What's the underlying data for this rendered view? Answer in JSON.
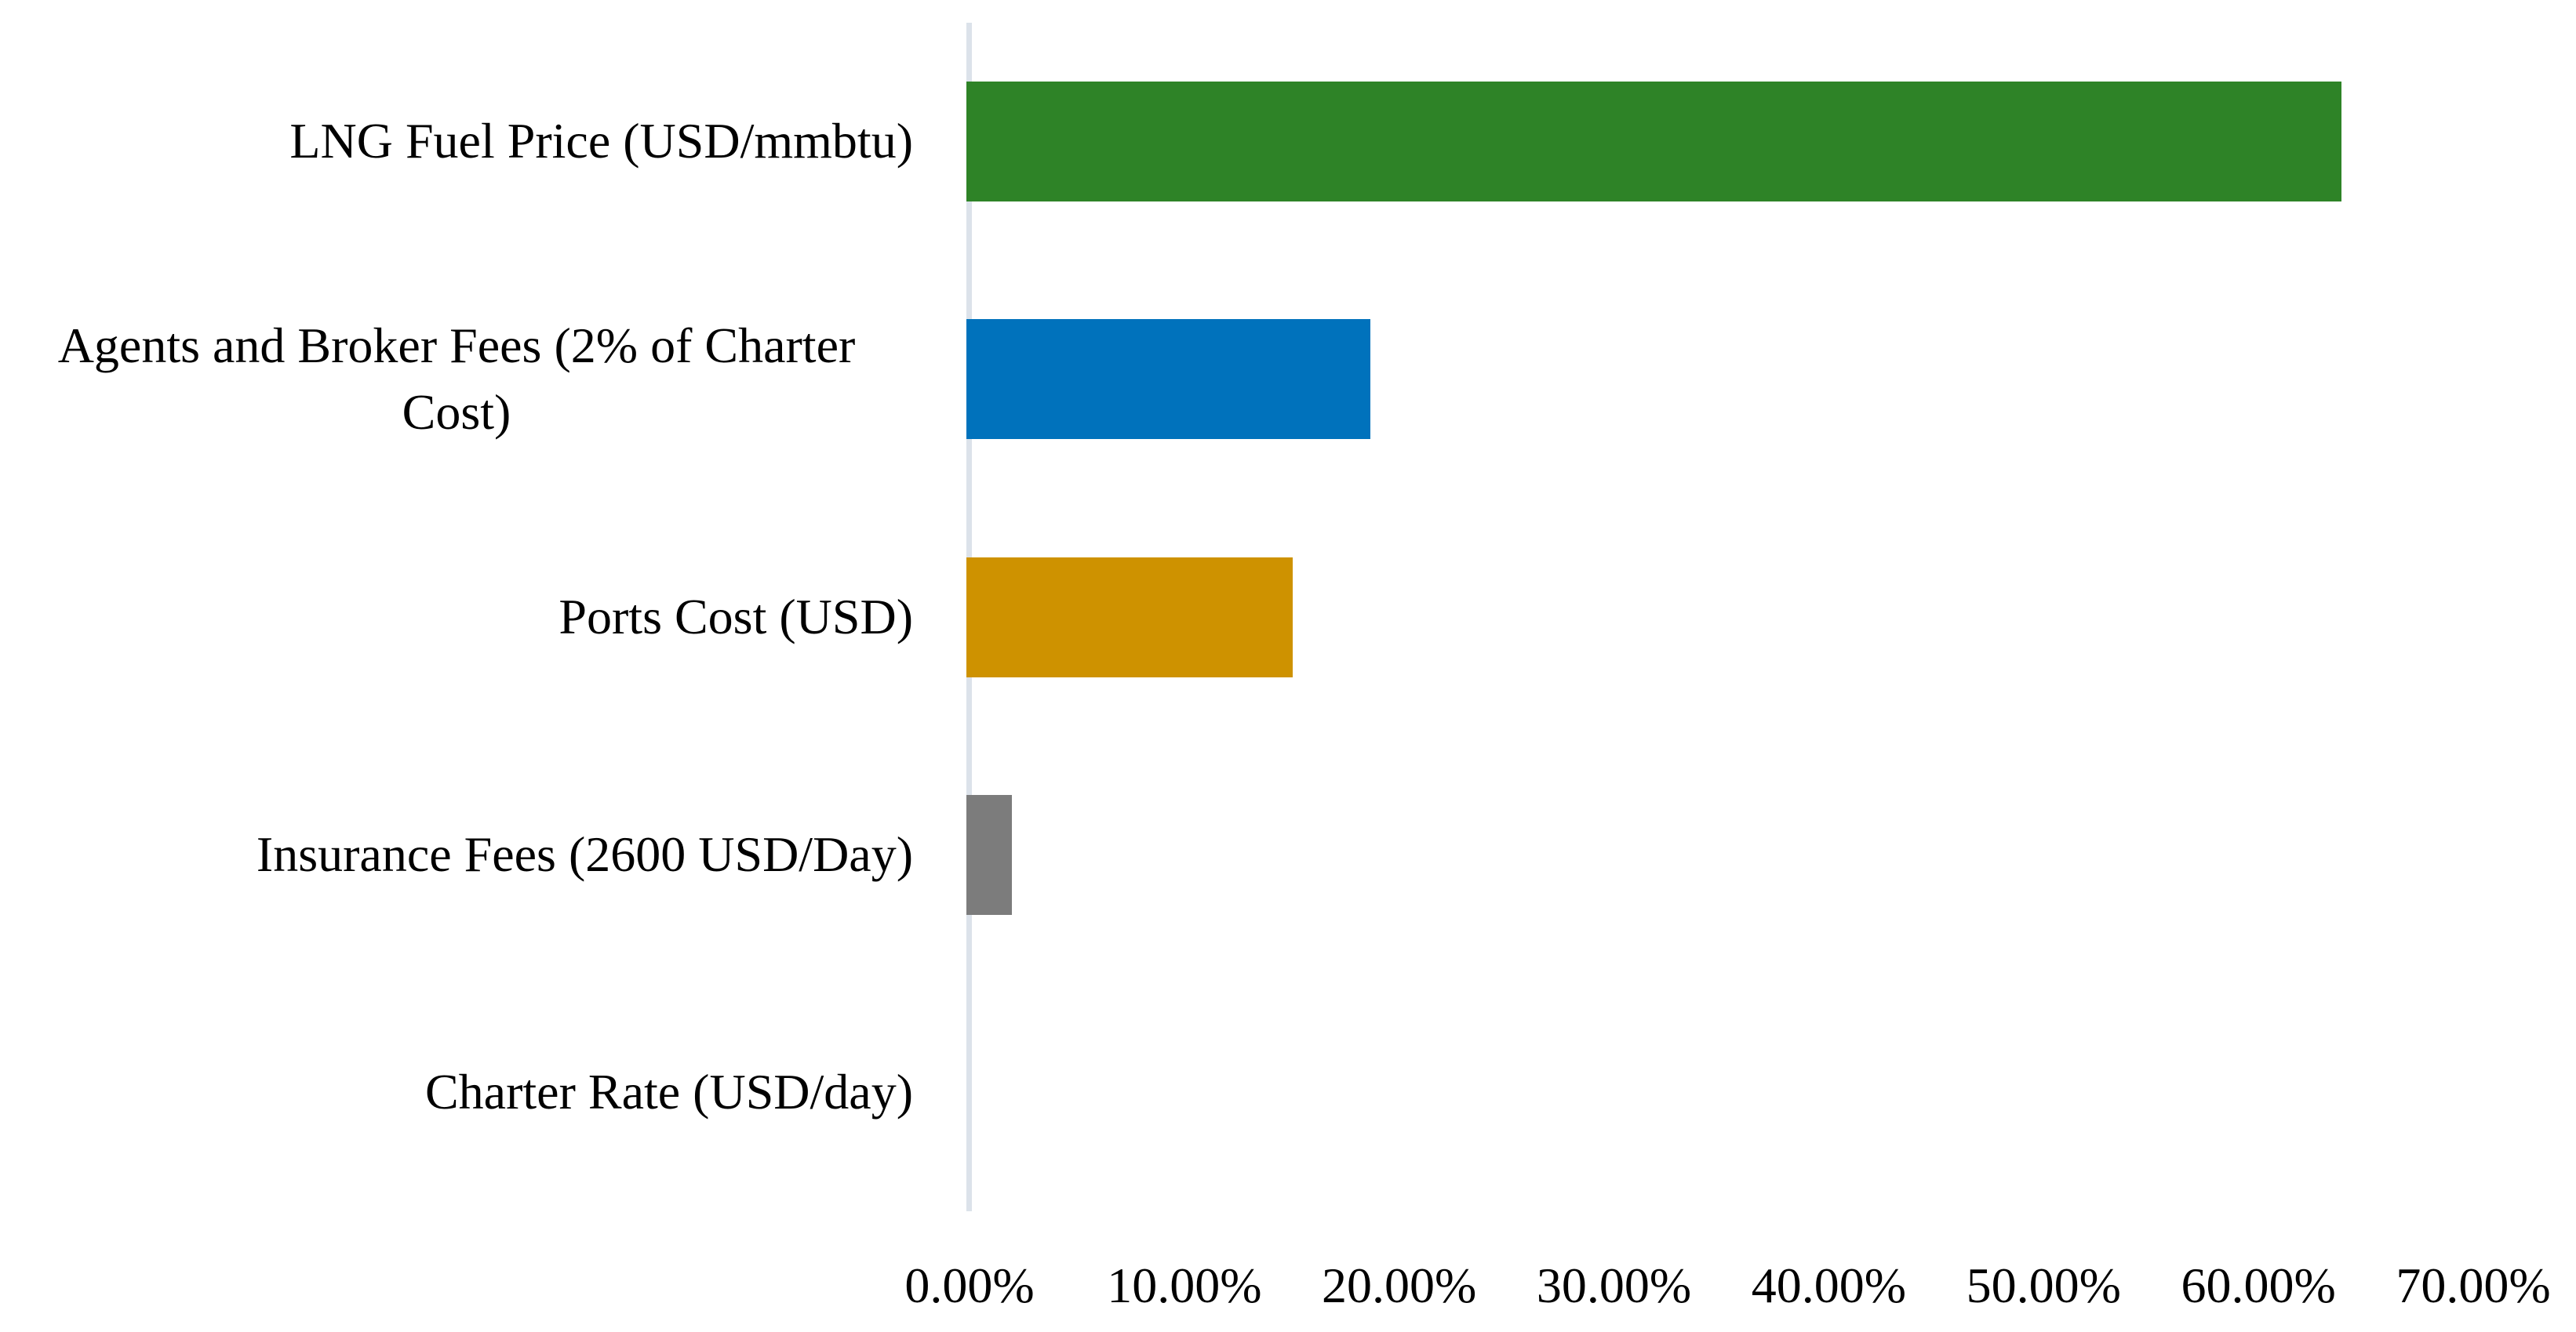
{
  "chart_data": {
    "type": "bar",
    "orientation": "horizontal",
    "title": "",
    "xlabel": "",
    "ylabel": "",
    "categories": [
      "LNG Fuel Price (USD/mmbtu)",
      "Agents and Broker Fees (2% of Charter Cost)",
      "Ports Cost (USD)",
      "Insurance Fees (2600 USD/Day)",
      "Charter Rate (USD/day)"
    ],
    "values": [
      64.0,
      18.8,
      15.2,
      2.1,
      0.0
    ],
    "value_unit": "%",
    "xlim": [
      0,
      70
    ],
    "x_ticks": [
      "0.00%",
      "10.00%",
      "20.00%",
      "30.00%",
      "40.00%",
      "50.00%",
      "60.00%",
      "70.00%"
    ],
    "bar_colors": [
      "#2E8327",
      "#0072BC",
      "#CE9200",
      "#7C7C7C",
      ""
    ],
    "grid": false,
    "legend": false
  },
  "styles": {
    "axis_line_color": "#DCE2EA",
    "background_color": "#FFFFFF",
    "text_color": "#000000"
  }
}
